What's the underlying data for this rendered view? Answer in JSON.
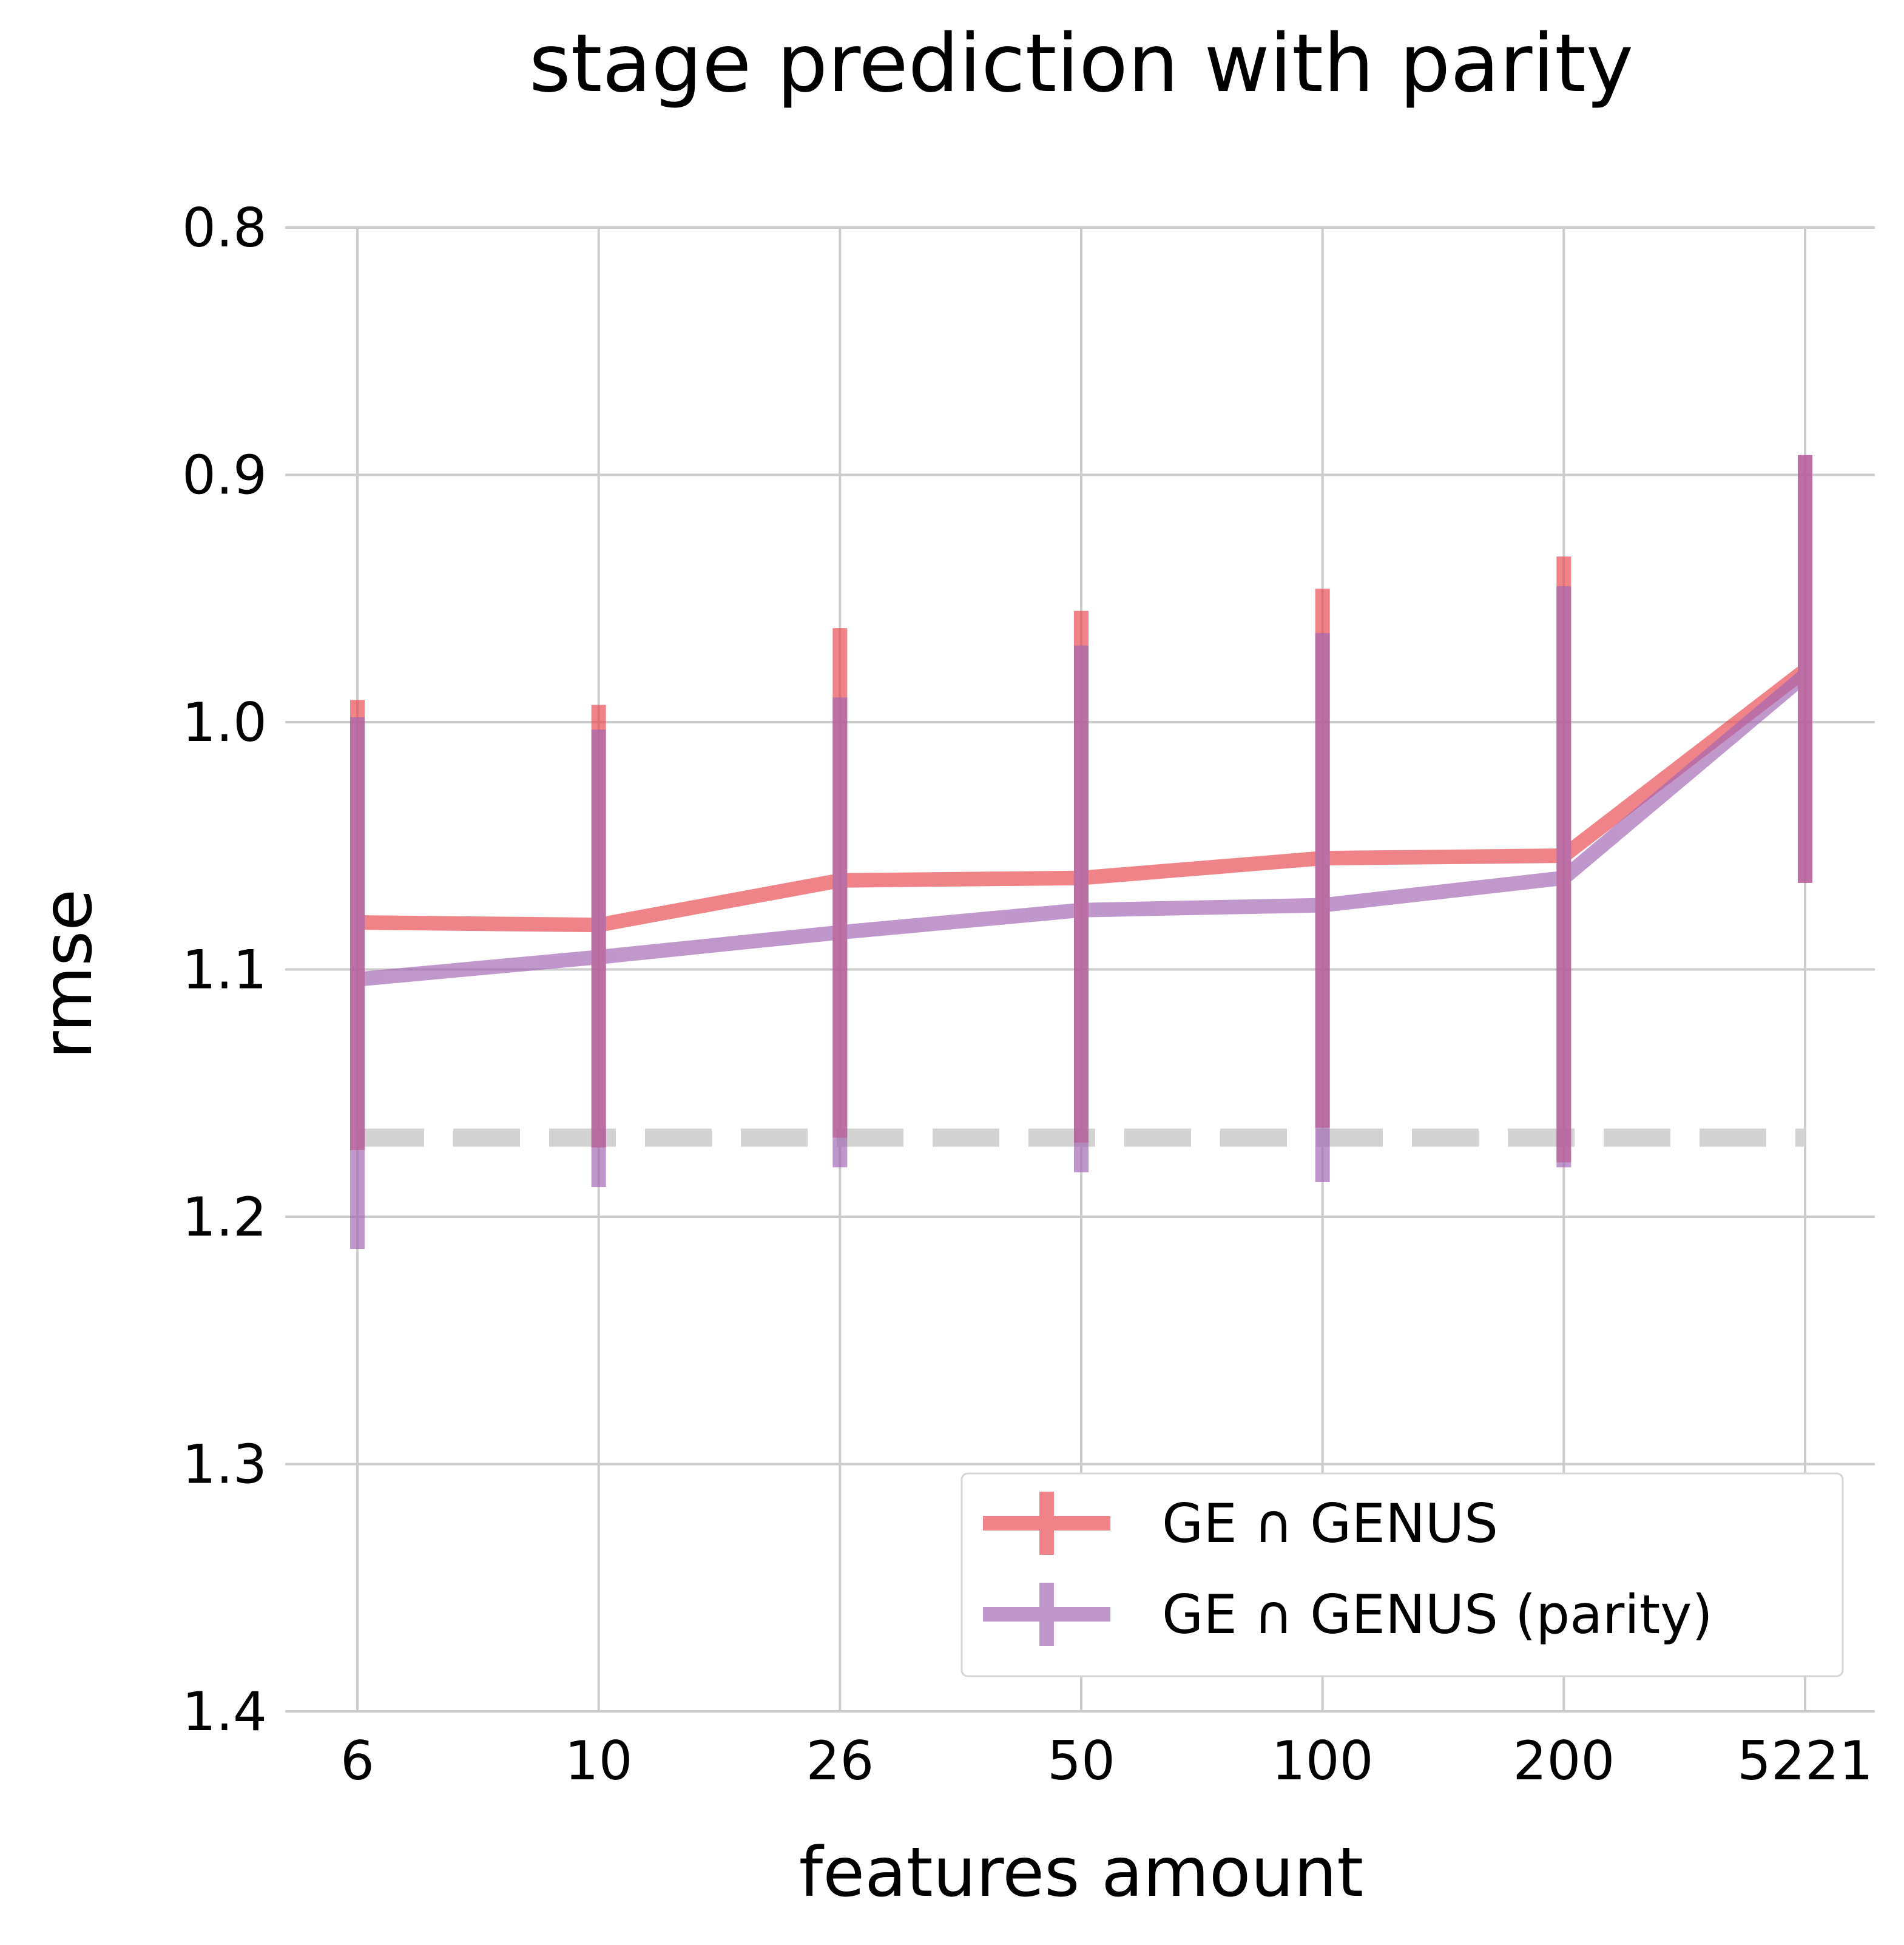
{
  "chart_data": {
    "type": "line",
    "title": "stage prediction with parity",
    "xlabel": "features amount",
    "ylabel": "rmse",
    "categories": [
      "6",
      "10",
      "26",
      "50",
      "100",
      "200",
      "5221"
    ],
    "y_ticks": [
      "0.8",
      "0.9",
      "1.0",
      "1.1",
      "1.2",
      "1.3",
      "1.4"
    ],
    "ylim": [
      0.8,
      1.4
    ],
    "y_inverted": true,
    "grid": true,
    "legend_position": "lower-right",
    "series": [
      {
        "name": "GE ∩ GENUS",
        "color": "#e8494f",
        "values": [
          1.081,
          1.082,
          1.064,
          1.063,
          1.055,
          1.054,
          0.979
        ],
        "error_low": [
          1.173,
          1.172,
          1.168,
          1.17,
          1.164,
          1.178,
          1.065
        ],
        "error_high": [
          0.991,
          0.993,
          0.962,
          0.955,
          0.946,
          0.933,
          0.892
        ]
      },
      {
        "name": "GE ∩ GENUS (parity)",
        "color": "#a367b4",
        "values": [
          1.104,
          1.095,
          1.085,
          1.076,
          1.074,
          1.063,
          0.981
        ],
        "error_low": [
          1.213,
          1.188,
          1.18,
          1.182,
          1.186,
          1.18,
          1.065
        ],
        "error_high": [
          0.998,
          1.003,
          0.99,
          0.969,
          0.964,
          0.945,
          0.892
        ]
      }
    ],
    "reference_line": {
      "y": 1.168,
      "style": "dashed",
      "color": "#d3d3d3"
    }
  }
}
